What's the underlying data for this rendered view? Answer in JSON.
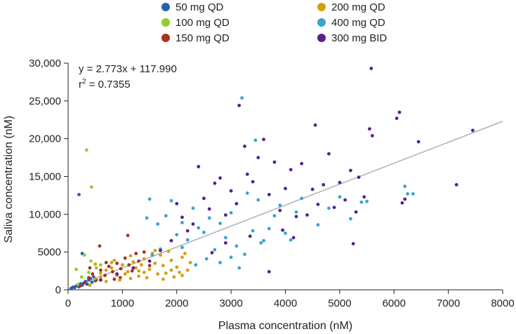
{
  "chart_data": {
    "type": "scatter",
    "title": "",
    "xlabel": "Plasma concentration (nM)",
    "ylabel": "Saliva concentration (nM)",
    "xlim": [
      0,
      8000
    ],
    "ylim": [
      0,
      30000
    ],
    "x_ticks": [
      0,
      1000,
      2000,
      3000,
      4000,
      5000,
      6000,
      7000,
      8000
    ],
    "x_tick_labels": [
      "0",
      "1000",
      "2000",
      "3000",
      "4000",
      "5000",
      "6000",
      "7000",
      "8000"
    ],
    "y_ticks": [
      0,
      5000,
      10000,
      15000,
      20000,
      25000,
      30000
    ],
    "y_tick_labels": [
      "0",
      "5000",
      "10,000",
      "15,000",
      "20,000",
      "25,000",
      "30,000"
    ],
    "grid": false,
    "legend_position": "top",
    "annotation": {
      "equation": "y = 2.773x + 117.990",
      "r2_prefix": "r",
      "r2_sup": "2",
      "r2_value": " = 0.7355"
    },
    "regression": {
      "slope": 2.773,
      "intercept": 117.99,
      "x_range": [
        0,
        8000
      ],
      "color": "#b0b0b0"
    },
    "series": [
      {
        "name": "50 mg QD",
        "color": "#2760b0",
        "points": [
          [
            60,
            200
          ],
          [
            90,
            350
          ],
          [
            120,
            300
          ],
          [
            150,
            500
          ],
          [
            180,
            650
          ],
          [
            200,
            400
          ],
          [
            230,
            800
          ],
          [
            260,
            600
          ],
          [
            290,
            900
          ],
          [
            320,
            1100
          ],
          [
            350,
            750
          ],
          [
            380,
            1300
          ],
          [
            410,
            1500
          ],
          [
            440,
            1000
          ],
          [
            470,
            1700
          ],
          [
            500,
            1200
          ],
          [
            260,
            4800
          ],
          [
            200,
            12600
          ]
        ]
      },
      {
        "name": "100 mg QD",
        "color": "#8bd12a",
        "points": [
          [
            150,
            2700
          ],
          [
            340,
            18500
          ],
          [
            430,
            13600
          ],
          [
            300,
            4600
          ],
          [
            520,
            2900
          ],
          [
            250,
            1700
          ],
          [
            420,
            3800
          ],
          [
            180,
            700
          ],
          [
            600,
            3300
          ],
          [
            380,
            2300
          ]
        ]
      },
      {
        "name": "150 mg QD",
        "color": "#a83222",
        "points": [
          [
            220,
            500
          ],
          [
            300,
            900
          ],
          [
            380,
            1600
          ],
          [
            450,
            2100
          ],
          [
            520,
            1300
          ],
          [
            600,
            2600
          ],
          [
            680,
            1900
          ],
          [
            750,
            3100
          ],
          [
            820,
            2400
          ],
          [
            900,
            3500
          ],
          [
            970,
            2800
          ],
          [
            1050,
            4200
          ],
          [
            1120,
            3300
          ],
          [
            1180,
            2500
          ],
          [
            1250,
            4800
          ],
          [
            1100,
            7200
          ],
          [
            580,
            5800
          ],
          [
            850,
            1400
          ],
          [
            1300,
            3800
          ],
          [
            700,
            3600
          ],
          [
            400,
            2900
          ],
          [
            960,
            1600
          ],
          [
            1500,
            3200
          ],
          [
            1400,
            5000
          ]
        ]
      },
      {
        "name": "200 mg QD",
        "color": "#d4a012",
        "points": [
          [
            400,
            600
          ],
          [
            500,
            1500
          ],
          [
            600,
            2200
          ],
          [
            700,
            1100
          ],
          [
            800,
            2900
          ],
          [
            900,
            1900
          ],
          [
            1000,
            3300
          ],
          [
            1100,
            2400
          ],
          [
            1200,
            3700
          ],
          [
            1300,
            1800
          ],
          [
            1400,
            4100
          ],
          [
            1500,
            2700
          ],
          [
            1600,
            3500
          ],
          [
            1700,
            4600
          ],
          [
            1800,
            2200
          ],
          [
            1900,
            3900
          ],
          [
            2000,
            3000
          ],
          [
            2100,
            4300
          ],
          [
            2200,
            2600
          ],
          [
            850,
            3900
          ],
          [
            950,
            1300
          ],
          [
            1150,
            1500
          ],
          [
            1250,
            2900
          ],
          [
            1350,
            3300
          ],
          [
            1450,
            1600
          ],
          [
            1550,
            4800
          ],
          [
            1650,
            2100
          ],
          [
            1750,
            3200
          ],
          [
            1850,
            5100
          ],
          [
            1950,
            1700
          ],
          [
            2050,
            2300
          ],
          [
            2150,
            4800
          ],
          [
            700,
            2600
          ],
          [
            600,
            1700
          ],
          [
            1050,
            2100
          ],
          [
            1750,
            1400
          ],
          [
            1150,
            4500
          ],
          [
            1400,
            2300
          ],
          [
            1600,
            5200
          ],
          [
            2250,
            3600
          ],
          [
            500,
            3400
          ],
          [
            800,
            3600
          ],
          [
            1300,
            2500
          ],
          [
            1900,
            2600
          ],
          [
            2100,
            1900
          ]
        ]
      },
      {
        "name": "400 mg QD",
        "color": "#39a3d4",
        "points": [
          [
            1450,
            9500
          ],
          [
            1500,
            12000
          ],
          [
            1650,
            8700
          ],
          [
            1800,
            9800
          ],
          [
            1900,
            11800
          ],
          [
            2000,
            7300
          ],
          [
            2100,
            8900
          ],
          [
            2200,
            6600
          ],
          [
            2300,
            10800
          ],
          [
            2400,
            8200
          ],
          [
            2500,
            7600
          ],
          [
            2600,
            9500
          ],
          [
            2700,
            5300
          ],
          [
            2800,
            8800
          ],
          [
            2900,
            6900
          ],
          [
            3000,
            10200
          ],
          [
            3100,
            5800
          ],
          [
            3200,
            25400
          ],
          [
            3300,
            12800
          ],
          [
            3400,
            7800
          ],
          [
            3450,
            19800
          ],
          [
            3500,
            11900
          ],
          [
            3600,
            6500
          ],
          [
            3700,
            8100
          ],
          [
            3800,
            9800
          ],
          [
            3900,
            11200
          ],
          [
            4000,
            7500
          ],
          [
            4100,
            6600
          ],
          [
            4200,
            10300
          ],
          [
            4300,
            12100
          ],
          [
            4600,
            8600
          ],
          [
            4800,
            10800
          ],
          [
            5000,
            12300
          ],
          [
            5200,
            9400
          ],
          [
            5400,
            11600
          ],
          [
            5500,
            11700
          ],
          [
            6200,
            13700
          ],
          [
            6250,
            12700
          ],
          [
            6350,
            12700
          ],
          [
            1700,
            5400
          ],
          [
            2550,
            4100
          ],
          [
            3150,
            2900
          ],
          [
            3550,
            6200
          ],
          [
            2100,
            5600
          ],
          [
            2800,
            3600
          ],
          [
            3000,
            4300
          ],
          [
            3250,
            4700
          ],
          [
            2350,
            3300
          ],
          [
            1550,
            4600
          ]
        ]
      },
      {
        "name": "300 mg BID",
        "color": "#5a1f8f",
        "points": [
          [
            600,
            1300
          ],
          [
            900,
            2100
          ],
          [
            1200,
            2900
          ],
          [
            1500,
            3800
          ],
          [
            1700,
            5200
          ],
          [
            1900,
            6500
          ],
          [
            2000,
            11400
          ],
          [
            2100,
            9600
          ],
          [
            2200,
            7800
          ],
          [
            2300,
            8700
          ],
          [
            2400,
            16300
          ],
          [
            2500,
            12100
          ],
          [
            2600,
            10700
          ],
          [
            2700,
            14100
          ],
          [
            2800,
            14800
          ],
          [
            2900,
            9900
          ],
          [
            3000,
            13100
          ],
          [
            3100,
            11400
          ],
          [
            3150,
            24400
          ],
          [
            3250,
            19000
          ],
          [
            3300,
            15300
          ],
          [
            3400,
            14300
          ],
          [
            3500,
            17500
          ],
          [
            3600,
            19900
          ],
          [
            3700,
            12600
          ],
          [
            3800,
            16900
          ],
          [
            3900,
            10500
          ],
          [
            4000,
            13400
          ],
          [
            4100,
            15900
          ],
          [
            4200,
            9700
          ],
          [
            4300,
            16700
          ],
          [
            4400,
            9900
          ],
          [
            4500,
            13300
          ],
          [
            4550,
            21800
          ],
          [
            4600,
            11300
          ],
          [
            4700,
            13900
          ],
          [
            4800,
            18000
          ],
          [
            4900,
            10900
          ],
          [
            5000,
            14200
          ],
          [
            5100,
            11900
          ],
          [
            5200,
            15800
          ],
          [
            5250,
            6100
          ],
          [
            5300,
            10300
          ],
          [
            5350,
            14900
          ],
          [
            5450,
            12300
          ],
          [
            5550,
            21300
          ],
          [
            5580,
            29300
          ],
          [
            5600,
            20400
          ],
          [
            6050,
            22700
          ],
          [
            6100,
            23500
          ],
          [
            6150,
            11500
          ],
          [
            6200,
            12000
          ],
          [
            6450,
            19600
          ],
          [
            7150,
            13900
          ],
          [
            7450,
            21100
          ],
          [
            3700,
            2400
          ],
          [
            2900,
            6200
          ],
          [
            2650,
            4900
          ],
          [
            3350,
            7100
          ],
          [
            4150,
            6900
          ],
          [
            3950,
            7900
          ]
        ]
      }
    ]
  }
}
